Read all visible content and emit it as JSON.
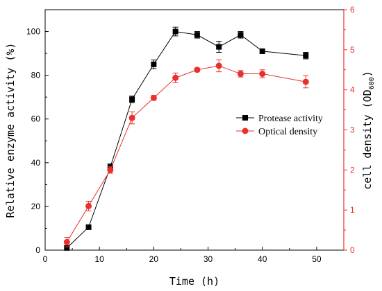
{
  "chart_data": {
    "type": "line",
    "title": "",
    "xlabel": "Time (h)",
    "ylabel": "Relative enzyme activity (%)",
    "y2label_prefix": "cell density (OD",
    "y2label_sub": "600",
    "y2label_suffix": ")",
    "xlim": [
      0,
      55
    ],
    "ylim": [
      0,
      110
    ],
    "y2lim": [
      0,
      6
    ],
    "x_ticks": [
      0,
      10,
      20,
      30,
      40,
      50
    ],
    "y_ticks": [
      0,
      20,
      40,
      60,
      80,
      100
    ],
    "y2_ticks": [
      0,
      1,
      2,
      3,
      4,
      5,
      6
    ],
    "legend_position": "right-middle",
    "series": [
      {
        "name": "Protease activity",
        "axis": "left",
        "color": "#000000",
        "marker": "square",
        "x": [
          4,
          8,
          12,
          16,
          20,
          24,
          28,
          32,
          36,
          40,
          48
        ],
        "y": [
          1,
          10.5,
          38,
          69,
          85,
          100,
          98.5,
          93,
          98.5,
          91,
          89
        ],
        "err": [
          1,
          1,
          1.5,
          1.5,
          2,
          2,
          1.5,
          2.5,
          1.5,
          1,
          1.5
        ]
      },
      {
        "name": "Optical density",
        "axis": "right",
        "color": "#e8302e",
        "marker": "circle",
        "x": [
          4,
          8,
          12,
          16,
          20,
          24,
          28,
          32,
          36,
          40,
          48
        ],
        "y": [
          0.2,
          1.1,
          2.0,
          3.3,
          3.8,
          4.3,
          4.5,
          4.6,
          4.4,
          4.4,
          4.2
        ],
        "err": [
          0.12,
          0.12,
          0.08,
          0.15,
          0.06,
          0.12,
          0.04,
          0.15,
          0.08,
          0.1,
          0.15
        ]
      }
    ]
  }
}
